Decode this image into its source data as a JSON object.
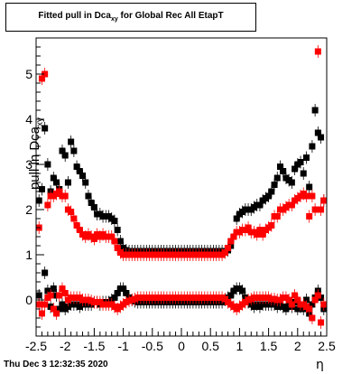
{
  "title": {
    "main": "Fitted pull in Dca",
    "sub": "xy",
    "rest": " for Global Rec All EtapT"
  },
  "ylabel": {
    "main": "pull in Dca",
    "sub": "xy"
  },
  "xlabel": "η",
  "timestamp": "Thu Dec  3 12:32:35 2020",
  "colors": {
    "black_series": "#000000",
    "red_series": "#ff0000",
    "frame": "#000000"
  },
  "chart_data": {
    "type": "scatter",
    "xlim": [
      -2.5,
      2.5
    ],
    "ylim": [
      -0.8,
      5.8
    ],
    "x_ticks": [
      "-2.5",
      "-2",
      "-1.5",
      "-1",
      "-0.5",
      "0",
      "0.5",
      "1",
      "1.5",
      "2",
      "2.5"
    ],
    "x_tick_values": [
      -2.5,
      -2,
      -1.5,
      -1,
      -0.5,
      0,
      0.5,
      1,
      1.5,
      2,
      2.5
    ],
    "y_ticks": [
      "0",
      "1",
      "2",
      "3",
      "4",
      "5"
    ],
    "y_tick_values": [
      0,
      1,
      2,
      3,
      4,
      5
    ],
    "grid": false,
    "series": [
      {
        "marker": "square",
        "color": "#000000",
        "x": [
          -2.45,
          -2.4,
          -2.35,
          -2.3,
          -2.25,
          -2.2,
          -2.15,
          -2.1,
          -2.05,
          -2.0,
          -1.95,
          -1.9,
          -1.85,
          -1.8,
          -1.75,
          -1.7,
          -1.65,
          -1.6,
          -1.55,
          -1.5,
          -1.45,
          -1.4,
          -1.35,
          -1.3,
          -1.25,
          -1.2,
          -1.15,
          -1.1,
          -1.05,
          -1.0,
          -0.95,
          -0.9,
          -0.85,
          -0.8,
          -0.75,
          -0.7,
          -0.65,
          -0.6,
          -0.55,
          -0.5,
          -0.45,
          -0.4,
          -0.35,
          -0.3,
          -0.25,
          -0.2,
          -0.15,
          -0.1,
          -0.05,
          0.0,
          0.05,
          0.1,
          0.15,
          0.2,
          0.25,
          0.3,
          0.35,
          0.4,
          0.45,
          0.5,
          0.55,
          0.6,
          0.65,
          0.7,
          0.75,
          0.8,
          0.85,
          0.9,
          0.95,
          1.0,
          1.05,
          1.1,
          1.15,
          1.2,
          1.25,
          1.3,
          1.35,
          1.4,
          1.45,
          1.5,
          1.55,
          1.6,
          1.65,
          1.7,
          1.75,
          1.8,
          1.85,
          1.9,
          1.95,
          2.0,
          2.05,
          2.1,
          2.15,
          2.2,
          2.25,
          2.3,
          2.35,
          2.4,
          2.45
        ],
        "y": [
          2.2,
          2.45,
          3.8,
          3.0,
          2.4,
          2.7,
          2.6,
          2.45,
          3.3,
          3.2,
          2.6,
          3.5,
          3.3,
          2.95,
          2.85,
          2.75,
          2.6,
          2.3,
          2.15,
          2.05,
          1.9,
          1.9,
          1.85,
          1.85,
          1.85,
          1.8,
          1.75,
          1.55,
          1.3,
          1.15,
          1.1,
          1.08,
          1.08,
          1.08,
          1.08,
          1.08,
          1.08,
          1.08,
          1.08,
          1.08,
          1.08,
          1.08,
          1.08,
          1.08,
          1.08,
          1.08,
          1.08,
          1.08,
          1.08,
          1.08,
          1.08,
          1.08,
          1.08,
          1.08,
          1.08,
          1.08,
          1.08,
          1.08,
          1.08,
          1.08,
          1.08,
          1.08,
          1.08,
          1.08,
          1.08,
          1.1,
          1.2,
          1.4,
          1.8,
          1.9,
          1.95,
          2.0,
          2.0,
          2.0,
          2.05,
          2.1,
          2.1,
          2.2,
          2.25,
          2.3,
          2.4,
          2.55,
          2.7,
          2.95,
          2.85,
          2.7,
          2.65,
          2.6,
          2.9,
          3.0,
          3.05,
          2.8,
          3.15,
          2.5,
          3.4,
          4.2,
          3.7,
          3.6,
          2.2
        ]
      },
      {
        "marker": "square",
        "color": "#ff0000",
        "x": [
          -2.45,
          -2.4,
          -2.35,
          -2.3,
          -2.25,
          -2.2,
          -2.15,
          -2.1,
          -2.05,
          -2.0,
          -1.95,
          -1.9,
          -1.85,
          -1.8,
          -1.75,
          -1.7,
          -1.65,
          -1.6,
          -1.55,
          -1.5,
          -1.45,
          -1.4,
          -1.35,
          -1.3,
          -1.25,
          -1.2,
          -1.15,
          -1.1,
          -1.05,
          -1.0,
          -0.95,
          -0.9,
          -0.85,
          -0.8,
          -0.75,
          -0.7,
          -0.65,
          -0.6,
          -0.55,
          -0.5,
          -0.45,
          -0.4,
          -0.35,
          -0.3,
          -0.25,
          -0.2,
          -0.15,
          -0.1,
          -0.05,
          0.0,
          0.05,
          0.1,
          0.15,
          0.2,
          0.25,
          0.3,
          0.35,
          0.4,
          0.45,
          0.5,
          0.55,
          0.6,
          0.65,
          0.7,
          0.75,
          0.8,
          0.85,
          0.9,
          0.95,
          1.0,
          1.05,
          1.1,
          1.15,
          1.2,
          1.25,
          1.3,
          1.35,
          1.4,
          1.45,
          1.5,
          1.55,
          1.6,
          1.65,
          1.7,
          1.75,
          1.8,
          1.85,
          1.9,
          1.95,
          2.0,
          2.05,
          2.1,
          2.15,
          2.2,
          2.25,
          2.3,
          2.35,
          2.4,
          2.45
        ],
        "y": [
          1.6,
          4.9,
          5.0,
          2.1,
          2.3,
          2.3,
          2.35,
          2.4,
          2.3,
          2.3,
          2.0,
          1.95,
          1.8,
          1.65,
          1.55,
          1.45,
          1.4,
          1.45,
          1.4,
          1.35,
          1.45,
          1.4,
          1.45,
          1.4,
          1.4,
          1.4,
          1.3,
          1.15,
          1.05,
          1.0,
          1.0,
          1.0,
          1.0,
          1.0,
          1.0,
          1.0,
          1.0,
          1.0,
          1.0,
          1.0,
          1.0,
          1.0,
          1.0,
          1.0,
          1.0,
          1.0,
          1.0,
          1.0,
          1.0,
          1.0,
          1.0,
          1.0,
          1.0,
          1.0,
          1.0,
          1.0,
          1.0,
          1.0,
          1.0,
          1.0,
          1.0,
          1.0,
          1.0,
          1.0,
          1.05,
          1.15,
          1.3,
          1.4,
          1.5,
          1.5,
          1.55,
          1.55,
          1.6,
          1.5,
          1.5,
          1.45,
          1.55,
          1.45,
          1.55,
          1.6,
          1.65,
          1.85,
          1.85,
          2.0,
          2.0,
          2.05,
          2.1,
          2.1,
          2.2,
          2.25,
          2.3,
          2.35,
          2.3,
          1.85,
          2.3,
          2.0,
          5.5,
          2.0,
          2.2
        ]
      },
      {
        "marker": "square",
        "color": "#000000",
        "x": [
          -2.45,
          -2.4,
          -2.35,
          -2.3,
          -2.25,
          -2.2,
          -2.15,
          -2.1,
          -2.05,
          -2.0,
          -1.95,
          -1.9,
          -1.85,
          -1.8,
          -1.75,
          -1.7,
          -1.65,
          -1.6,
          -1.55,
          -1.5,
          -1.45,
          -1.4,
          -1.35,
          -1.3,
          -1.25,
          -1.2,
          -1.15,
          -1.1,
          -1.05,
          -1.0,
          -0.95,
          -0.9,
          -0.85,
          -0.8,
          -0.75,
          -0.7,
          -0.65,
          -0.6,
          -0.55,
          -0.5,
          -0.45,
          -0.4,
          -0.35,
          -0.3,
          -0.25,
          -0.2,
          -0.15,
          -0.1,
          -0.05,
          0.0,
          0.05,
          0.1,
          0.15,
          0.2,
          0.25,
          0.3,
          0.35,
          0.4,
          0.45,
          0.5,
          0.55,
          0.6,
          0.65,
          0.7,
          0.75,
          0.8,
          0.85,
          0.9,
          0.95,
          1.0,
          1.05,
          1.1,
          1.15,
          1.2,
          1.25,
          1.3,
          1.35,
          1.4,
          1.45,
          1.5,
          1.55,
          1.6,
          1.65,
          1.7,
          1.75,
          1.8,
          1.85,
          1.9,
          1.95,
          2.0,
          2.05,
          2.1,
          2.15,
          2.2,
          2.25,
          2.3,
          2.35,
          2.4,
          2.45
        ],
        "y": [
          0.1,
          -0.1,
          0.6,
          0.2,
          -0.15,
          0.25,
          0.1,
          -0.2,
          -0.1,
          -0.2,
          -0.15,
          -0.1,
          -0.1,
          -0.1,
          -0.15,
          -0.1,
          -0.1,
          -0.1,
          -0.1,
          -0.05,
          -0.05,
          -0.1,
          -0.05,
          -0.05,
          -0.05,
          0.0,
          0.05,
          0.15,
          0.25,
          0.25,
          0.15,
          0.05,
          0.0,
          -0.03,
          -0.05,
          -0.05,
          -0.05,
          -0.05,
          -0.05,
          -0.05,
          -0.05,
          -0.05,
          -0.05,
          -0.05,
          -0.05,
          -0.05,
          -0.05,
          -0.05,
          -0.05,
          -0.05,
          -0.05,
          -0.05,
          -0.05,
          -0.05,
          -0.05,
          -0.05,
          -0.05,
          -0.05,
          -0.05,
          -0.05,
          -0.05,
          -0.05,
          -0.05,
          -0.05,
          0.0,
          0.05,
          0.1,
          0.2,
          0.25,
          0.25,
          0.2,
          0.05,
          -0.05,
          -0.1,
          -0.15,
          -0.1,
          -0.15,
          -0.1,
          -0.1,
          -0.1,
          -0.1,
          -0.1,
          -0.15,
          -0.1,
          -0.15,
          -0.2,
          -0.1,
          -0.15,
          -0.05,
          -0.2,
          -0.15,
          -0.2,
          0.0,
          -0.3,
          -0.1,
          0.05,
          0.2,
          0.05,
          -0.2
        ]
      },
      {
        "marker": "square",
        "color": "#ff0000",
        "x": [
          -2.45,
          -2.4,
          -2.35,
          -2.3,
          -2.25,
          -2.2,
          -2.15,
          -2.1,
          -2.05,
          -2.0,
          -1.95,
          -1.9,
          -1.85,
          -1.8,
          -1.75,
          -1.7,
          -1.65,
          -1.6,
          -1.55,
          -1.5,
          -1.45,
          -1.4,
          -1.35,
          -1.3,
          -1.25,
          -1.2,
          -1.15,
          -1.1,
          -1.05,
          -1.0,
          -0.95,
          -0.9,
          -0.85,
          -0.8,
          -0.75,
          -0.7,
          -0.65,
          -0.6,
          -0.55,
          -0.5,
          -0.45,
          -0.4,
          -0.35,
          -0.3,
          -0.25,
          -0.2,
          -0.15,
          -0.1,
          -0.05,
          0.0,
          0.05,
          0.1,
          0.15,
          0.2,
          0.25,
          0.3,
          0.35,
          0.4,
          0.45,
          0.5,
          0.55,
          0.6,
          0.65,
          0.7,
          0.75,
          0.8,
          0.85,
          0.9,
          0.95,
          1.0,
          1.05,
          1.1,
          1.15,
          1.2,
          1.25,
          1.3,
          1.35,
          1.4,
          1.45,
          1.5,
          1.55,
          1.6,
          1.65,
          1.7,
          1.75,
          1.8,
          1.85,
          1.9,
          1.95,
          2.0,
          2.05,
          2.1,
          2.15,
          2.2,
          2.25,
          2.3,
          2.35,
          2.4,
          2.45
        ],
        "y": [
          -0.1,
          -0.3,
          -0.1,
          0.05,
          0.1,
          -0.2,
          -0.3,
          0.1,
          0.25,
          0.15,
          0.0,
          0.05,
          0.05,
          0.05,
          0.05,
          0.0,
          0.0,
          0.0,
          -0.02,
          -0.05,
          -0.05,
          -0.05,
          -0.1,
          -0.1,
          -0.1,
          -0.1,
          -0.15,
          -0.2,
          -0.15,
          -0.1,
          -0.05,
          -0.02,
          0.0,
          0.02,
          0.05,
          0.05,
          0.05,
          0.05,
          0.05,
          0.05,
          0.05,
          0.05,
          0.05,
          0.05,
          0.05,
          0.05,
          0.05,
          0.05,
          0.05,
          0.05,
          0.05,
          0.05,
          0.05,
          0.05,
          0.05,
          0.05,
          0.05,
          0.05,
          0.05,
          0.05,
          0.05,
          0.05,
          0.05,
          0.05,
          0.02,
          -0.05,
          -0.1,
          -0.15,
          -0.2,
          -0.15,
          -0.1,
          -0.05,
          0.0,
          0.02,
          0.05,
          0.05,
          0.05,
          0.05,
          0.05,
          0.05,
          0.02,
          0.02,
          0.0,
          0.0,
          0.05,
          0.05,
          0.0,
          -0.1,
          0.1,
          0.0,
          -0.1,
          -0.1,
          -0.15,
          -0.2,
          -0.4,
          0.0,
          0.1,
          -0.5,
          -0.1
        ]
      }
    ]
  }
}
